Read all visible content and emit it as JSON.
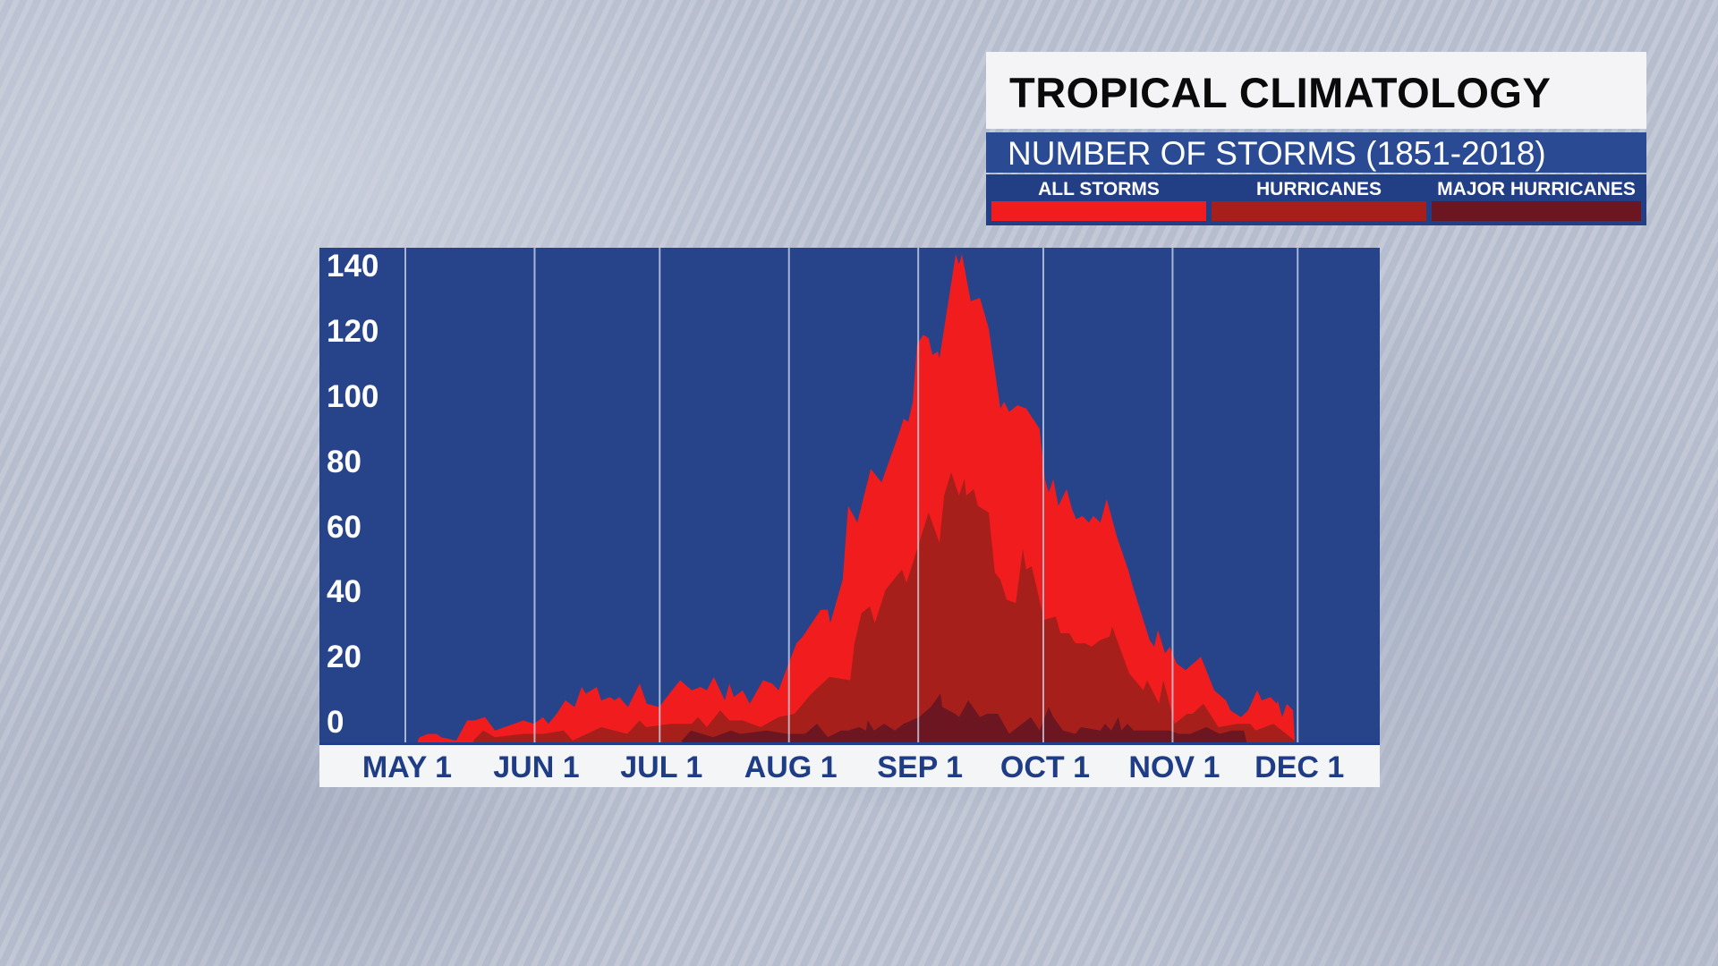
{
  "header": {
    "title": "TROPICAL CLIMATOLOGY",
    "subtitle": "NUMBER OF STORMS (1851-2018)"
  },
  "legend": [
    {
      "label": "ALL STORMS",
      "color": "#f01c1e"
    },
    {
      "label": "HURRICANES",
      "color": "#a61f1a"
    },
    {
      "label": "MAJOR HURRICANES",
      "color": "#6b1620"
    }
  ],
  "colors": {
    "plot_background": "#27438a",
    "gridline": "rgba(210,220,240,0.75)",
    "axis_text": "#1f3c86"
  },
  "chart_data": {
    "type": "area",
    "title": "TROPICAL CLIMATOLOGY",
    "subtitle": "NUMBER OF STORMS (1851-2018)",
    "xlabel": "",
    "ylabel": "",
    "x_unit": "days since May 1",
    "xlim": [
      -17,
      231
    ],
    "ylim": [
      0,
      145
    ],
    "grid": "vertical",
    "legend_position": "top-right",
    "x_ticks": [
      {
        "label": "MAY 1",
        "day": 0
      },
      {
        "label": "JUN 1",
        "day": 31
      },
      {
        "label": "JUL 1",
        "day": 61
      },
      {
        "label": "AUG 1",
        "day": 92
      },
      {
        "label": "SEP 1",
        "day": 123
      },
      {
        "label": "OCT 1",
        "day": 153
      },
      {
        "label": "NOV 1",
        "day": 184
      },
      {
        "label": "DEC 1",
        "day": 214
      }
    ],
    "y_ticks": [
      140,
      120,
      100,
      80,
      60,
      40,
      20,
      0
    ],
    "series": [
      {
        "name": "ALL STORMS",
        "color": "#f01c1e",
        "points": [
          [
            3,
            0
          ],
          [
            3.4,
            1
          ],
          [
            5.4,
            2
          ],
          [
            7.5,
            2
          ],
          [
            8.6,
            1
          ],
          [
            12.2,
            0
          ],
          [
            14.8,
            6
          ],
          [
            16.5,
            6
          ],
          [
            19.1,
            7
          ],
          [
            21.5,
            3
          ],
          [
            28.3,
            6
          ],
          [
            30.9,
            5
          ],
          [
            33,
            7
          ],
          [
            34.3,
            5
          ],
          [
            36.3,
            8
          ],
          [
            38.4,
            12
          ],
          [
            40.6,
            10
          ],
          [
            42.3,
            16
          ],
          [
            43.3,
            14
          ],
          [
            45.9,
            16
          ],
          [
            47,
            12
          ],
          [
            49.1,
            13
          ],
          [
            50.2,
            12
          ],
          [
            51.3,
            13
          ],
          [
            53.4,
            10
          ],
          [
            56.2,
            17
          ],
          [
            57.9,
            11
          ],
          [
            60.9,
            10
          ],
          [
            62.7,
            13
          ],
          [
            65.9,
            18
          ],
          [
            68.7,
            15
          ],
          [
            70.8,
            16
          ],
          [
            72.3,
            15
          ],
          [
            74,
            19
          ],
          [
            76.6,
            12
          ],
          [
            77.7,
            17
          ],
          [
            78.8,
            13
          ],
          [
            80.9,
            15
          ],
          [
            82.6,
            11
          ],
          [
            85.8,
            18
          ],
          [
            88,
            17
          ],
          [
            89.5,
            15
          ],
          [
            91.6,
            22
          ],
          [
            93.8,
            29
          ],
          [
            95.3,
            31
          ],
          [
            99.6,
            39
          ],
          [
            101.3,
            39
          ],
          [
            101.9,
            35
          ],
          [
            104.9,
            48
          ],
          [
            106.2,
            70
          ],
          [
            108.4,
            65
          ],
          [
            111.6,
            81
          ],
          [
            114.2,
            77
          ],
          [
            118.5,
            92
          ],
          [
            119.5,
            96
          ],
          [
            120.6,
            95
          ],
          [
            121.7,
            101
          ],
          [
            122.7,
            118
          ],
          [
            124.2,
            121
          ],
          [
            125.5,
            120
          ],
          [
            126.4,
            115
          ],
          [
            127.7,
            116
          ],
          [
            128.1,
            114
          ],
          [
            132,
            145
          ],
          [
            132.8,
            142
          ],
          [
            133.5,
            145
          ],
          [
            135.6,
            131
          ],
          [
            137.8,
            132
          ],
          [
            139.9,
            123
          ],
          [
            142.7,
            99
          ],
          [
            143.6,
            101
          ],
          [
            144.8,
            98
          ],
          [
            146.8,
            100
          ],
          [
            148.9,
            99
          ],
          [
            152.1,
            93
          ],
          [
            153.4,
            78
          ],
          [
            154.3,
            74
          ],
          [
            155.4,
            78
          ],
          [
            156.6,
            70
          ],
          [
            158.6,
            75
          ],
          [
            159.9,
            69
          ],
          [
            160.9,
            66
          ],
          [
            162.4,
            67
          ],
          [
            163.9,
            65
          ],
          [
            165,
            67
          ],
          [
            166.7,
            65
          ],
          [
            168.2,
            72
          ],
          [
            170.6,
            61
          ],
          [
            173.6,
            50
          ],
          [
            174.2,
            47
          ],
          [
            178.5,
            30
          ],
          [
            179.6,
            28
          ],
          [
            180.5,
            33
          ],
          [
            182.2,
            26
          ],
          [
            183.3,
            28
          ],
          [
            185,
            23
          ],
          [
            187.1,
            21
          ],
          [
            190.8,
            25
          ],
          [
            194,
            15
          ],
          [
            196.8,
            12
          ],
          [
            197.9,
            9
          ],
          [
            200.4,
            7
          ],
          [
            202.1,
            9
          ],
          [
            204.3,
            15
          ],
          [
            205.4,
            12
          ],
          [
            207.5,
            13
          ],
          [
            209,
            11
          ],
          [
            209.2,
            12
          ],
          [
            210.3,
            7
          ],
          [
            211.4,
            11
          ],
          [
            212.9,
            9
          ],
          [
            213.3,
            0
          ]
        ]
      },
      {
        "name": "HURRICANES",
        "color": "#a61f1a",
        "points": [
          [
            16.3,
            0
          ],
          [
            18.7,
            3
          ],
          [
            21.5,
            1
          ],
          [
            28.3,
            2
          ],
          [
            33,
            2
          ],
          [
            38,
            3
          ],
          [
            40.1,
            0
          ],
          [
            47,
            4
          ],
          [
            53.2,
            2
          ],
          [
            56.2,
            6
          ],
          [
            57.7,
            4
          ],
          [
            63.7,
            5
          ],
          [
            68.7,
            5
          ],
          [
            70.2,
            7
          ],
          [
            72.3,
            4
          ],
          [
            75.5,
            9
          ],
          [
            77.7,
            6
          ],
          [
            80.9,
            6
          ],
          [
            85.2,
            4
          ],
          [
            89.5,
            7
          ],
          [
            93.3,
            8
          ],
          [
            97.4,
            14
          ],
          [
            101.7,
            19
          ],
          [
            106.7,
            18
          ],
          [
            107.7,
            29
          ],
          [
            109.4,
            38
          ],
          [
            111.4,
            40
          ],
          [
            112.6,
            35
          ],
          [
            115.2,
            45
          ],
          [
            119.1,
            51
          ],
          [
            120.2,
            47
          ],
          [
            125.5,
            68
          ],
          [
            128.1,
            59
          ],
          [
            129.2,
            73
          ],
          [
            130.9,
            80
          ],
          [
            132.8,
            73
          ],
          [
            134.1,
            78
          ],
          [
            134.5,
            73
          ],
          [
            136.3,
            75
          ],
          [
            137.3,
            70
          ],
          [
            139.9,
            68
          ],
          [
            141.4,
            50
          ],
          [
            142.7,
            48
          ],
          [
            144.2,
            42
          ],
          [
            146.4,
            41
          ],
          [
            148.1,
            57
          ],
          [
            148.9,
            51
          ],
          [
            150.2,
            52
          ],
          [
            151.7,
            44
          ],
          [
            153.2,
            36
          ],
          [
            156,
            37
          ],
          [
            157.1,
            32
          ],
          [
            159.2,
            32
          ],
          [
            160.7,
            29
          ],
          [
            163.1,
            29
          ],
          [
            164.6,
            28
          ],
          [
            166.7,
            30
          ],
          [
            168.9,
            31
          ],
          [
            169.5,
            34
          ],
          [
            173.6,
            20
          ],
          [
            177,
            15
          ],
          [
            177.9,
            18
          ],
          [
            180.7,
            11
          ],
          [
            181.8,
            18
          ],
          [
            184.5,
            5
          ],
          [
            187.5,
            8
          ],
          [
            188.8,
            8
          ],
          [
            191.4,
            11
          ],
          [
            195,
            4
          ],
          [
            199.6,
            5
          ],
          [
            202.6,
            5
          ],
          [
            203.9,
            3
          ],
          [
            208.2,
            5
          ],
          [
            213.3,
            0
          ]
        ]
      },
      {
        "name": "MAJOR HURRICANES",
        "color": "#6b1620",
        "points": [
          [
            66.3,
            0
          ],
          [
            68.5,
            3
          ],
          [
            73.8,
            1
          ],
          [
            78.1,
            3
          ],
          [
            80.3,
            2
          ],
          [
            86.7,
            3
          ],
          [
            91.6,
            2
          ],
          [
            95.9,
            2
          ],
          [
            98.7,
            5
          ],
          [
            101.3,
            1
          ],
          [
            104.5,
            3
          ],
          [
            106.2,
            3
          ],
          [
            108.8,
            4
          ],
          [
            110.5,
            3
          ],
          [
            110.9,
            6
          ],
          [
            112.4,
            3
          ],
          [
            114.8,
            5
          ],
          [
            117.4,
            3
          ],
          [
            119.5,
            5
          ],
          [
            123.2,
            7
          ],
          [
            126,
            10
          ],
          [
            128.3,
            14
          ],
          [
            128.8,
            10
          ],
          [
            131.8,
            8
          ],
          [
            132.8,
            7
          ],
          [
            135,
            12
          ],
          [
            137.8,
            7
          ],
          [
            139.5,
            8
          ],
          [
            141,
            8
          ],
          [
            142.1,
            8
          ],
          [
            144.8,
            2
          ],
          [
            150,
            7
          ],
          [
            152.1,
            3
          ],
          [
            154.3,
            10
          ],
          [
            155.4,
            7
          ],
          [
            157.7,
            3
          ],
          [
            160.7,
            2
          ],
          [
            162,
            4
          ],
          [
            166.7,
            3
          ],
          [
            167.8,
            5
          ],
          [
            169.3,
            3
          ],
          [
            171,
            7
          ],
          [
            171.7,
            3
          ],
          [
            173.2,
            5
          ],
          [
            174.7,
            3
          ],
          [
            183.3,
            3
          ],
          [
            185.4,
            2
          ],
          [
            188.2,
            2
          ],
          [
            192.1,
            4
          ],
          [
            195.3,
            2
          ],
          [
            198.3,
            3
          ],
          [
            201.1,
            3
          ],
          [
            201.7,
            0
          ]
        ]
      }
    ]
  }
}
